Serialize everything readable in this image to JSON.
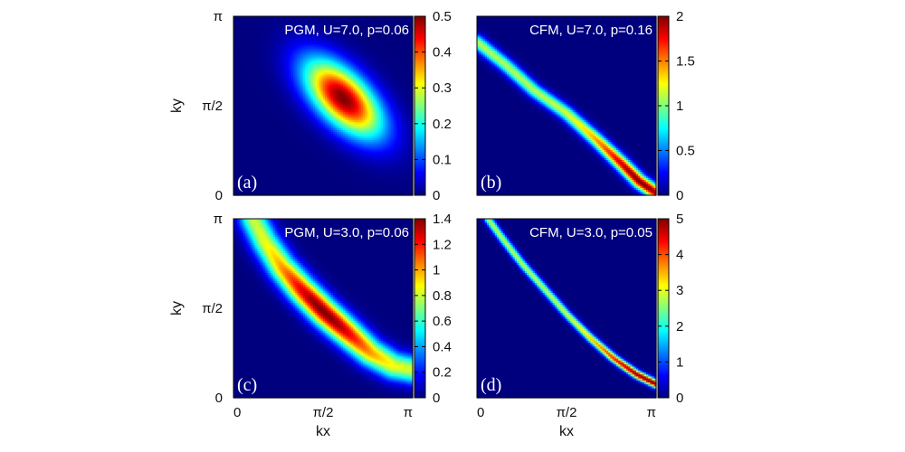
{
  "chart_data": [
    {
      "type": "heatmap",
      "panel_label": "(a)",
      "annotation": "PGM, U=7.0, p=0.06",
      "xlabel": "",
      "ylabel": "ky",
      "xlim": [
        0,
        3.14159
      ],
      "ylim": [
        0,
        3.14159
      ],
      "x_ticks": [],
      "y_ticks": [
        "0",
        "π/2",
        "π"
      ],
      "colorbar": {
        "min": 0,
        "max": 0.5,
        "ticks": [
          "0",
          "0.1",
          "0.2",
          "0.3",
          "0.4",
          "0.5"
        ]
      },
      "colormap": [
        "#00007f",
        "#0000ff",
        "#00ffff",
        "#ffff00",
        "#ff0000",
        "#7f0000"
      ],
      "feature": {
        "shape": "ellipse",
        "center": [
          1.92,
          1.71
        ],
        "angle_deg": 45,
        "sigma_long": 0.6,
        "sigma_short": 0.3,
        "peak": 0.5
      }
    },
    {
      "type": "heatmap",
      "panel_label": "(b)",
      "annotation": "CFM, U=7.0, p=0.16",
      "xlabel": "",
      "ylabel": "",
      "xlim": [
        0,
        3.14159
      ],
      "ylim": [
        0,
        3.14159
      ],
      "x_ticks": [],
      "y_ticks": [],
      "colorbar": {
        "min": 0,
        "max": 2,
        "ticks": [
          "0",
          "0.5",
          "1",
          "1.5",
          "2"
        ]
      },
      "colormap": [
        "#00007f",
        "#0000ff",
        "#00ffff",
        "#ffff00",
        "#ff0000",
        "#7f0000"
      ],
      "feature": {
        "shape": "ridge",
        "path": [
          [
            0.0,
            2.7
          ],
          [
            0.5,
            2.3
          ],
          [
            1.0,
            1.85
          ],
          [
            1.57,
            1.45
          ],
          [
            2.1,
            0.98
          ],
          [
            2.55,
            0.55
          ],
          [
            2.85,
            0.25
          ],
          [
            3.14,
            0.05
          ]
        ],
        "width": 0.085,
        "peak": 2.0,
        "peak_at": [
          2.85,
          0.2
        ]
      }
    },
    {
      "type": "heatmap",
      "panel_label": "(c)",
      "annotation": "PGM, U=3.0, p=0.06",
      "xlabel": "kx",
      "ylabel": "ky",
      "xlim": [
        0,
        3.14159
      ],
      "ylim": [
        0,
        3.14159
      ],
      "x_ticks": [
        "0",
        "π/2",
        "π"
      ],
      "y_ticks": [
        "0",
        "π/2",
        "π"
      ],
      "colorbar": {
        "min": 0,
        "max": 1.4,
        "ticks": [
          "0",
          "0.2",
          "0.4",
          "0.6",
          "0.8",
          "1",
          "1.2",
          "1.4"
        ]
      },
      "colormap": [
        "#00007f",
        "#0000ff",
        "#00ffff",
        "#ffff00",
        "#ff0000",
        "#7f0000"
      ],
      "feature": {
        "shape": "ridge",
        "path": [
          [
            0.35,
            3.14
          ],
          [
            0.55,
            2.75
          ],
          [
            0.85,
            2.3
          ],
          [
            1.2,
            1.9
          ],
          [
            1.6,
            1.5
          ],
          [
            2.0,
            1.15
          ],
          [
            2.4,
            0.8
          ],
          [
            2.8,
            0.57
          ],
          [
            3.14,
            0.5
          ]
        ],
        "width": 0.17,
        "peak": 1.4,
        "peak_at": [
          1.57,
          1.5
        ]
      }
    },
    {
      "type": "heatmap",
      "panel_label": "(d)",
      "annotation": "CFM, U=3.0, p=0.05",
      "xlabel": "kx",
      "ylabel": "",
      "xlim": [
        0,
        3.14159
      ],
      "ylim": [
        0,
        3.14159
      ],
      "x_ticks": [
        "0",
        "π/2",
        "π"
      ],
      "y_ticks": [],
      "colorbar": {
        "min": 0,
        "max": 5,
        "ticks": [
          "0",
          "1",
          "2",
          "3",
          "4",
          "5"
        ]
      },
      "colormap": [
        "#00007f",
        "#0000ff",
        "#00ffff",
        "#ffff00",
        "#ff0000",
        "#7f0000"
      ],
      "feature": {
        "shape": "ridge",
        "path": [
          [
            0.2,
            3.14
          ],
          [
            0.45,
            2.8
          ],
          [
            0.8,
            2.35
          ],
          [
            1.2,
            1.9
          ],
          [
            1.6,
            1.45
          ],
          [
            2.0,
            1.05
          ],
          [
            2.4,
            0.7
          ],
          [
            2.8,
            0.42
          ],
          [
            3.14,
            0.25
          ]
        ],
        "width": 0.05,
        "peak": 5.0,
        "peak_at": [
          3.0,
          0.28
        ]
      }
    }
  ]
}
